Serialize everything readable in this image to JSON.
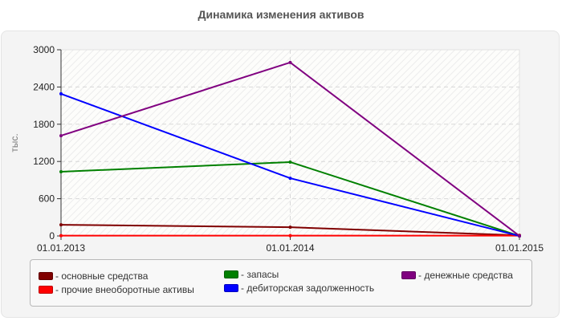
{
  "title": "Динамика изменения активов",
  "y_axis_label": "тыс.",
  "y_ticks": [
    "0",
    "600",
    "1200",
    "1800",
    "2400",
    "3000"
  ],
  "x_ticks": [
    "01.01.2013",
    "01.01.2014",
    "01.01.2015"
  ],
  "legend": [
    {
      "label": "- основные средства",
      "color": "#800000"
    },
    {
      "label": "- прочие внеоборотные активы",
      "color": "#ff0000"
    },
    {
      "label": "- запасы",
      "color": "#008000"
    },
    {
      "label": "- дебиторская задолженность",
      "color": "#0000ff"
    },
    {
      "label": "- денежные средства",
      "color": "#800080"
    }
  ],
  "chart_data": {
    "type": "line",
    "title": "Динамика изменения активов",
    "xlabel": "",
    "ylabel": "тыс.",
    "ylim": [
      0,
      3000
    ],
    "yticks": [
      0,
      600,
      1200,
      1800,
      2400,
      3000
    ],
    "grid": true,
    "legend_position": "bottom",
    "x": [
      "01.01.2013",
      "01.01.2014",
      "01.01.2015"
    ],
    "series": [
      {
        "name": "основные средства",
        "color": "#800000",
        "values": [
          180,
          140,
          10
        ]
      },
      {
        "name": "прочие внеоборотные активы",
        "color": "#ff0000",
        "values": [
          5,
          5,
          5
        ]
      },
      {
        "name": "запасы",
        "color": "#008000",
        "values": [
          1035,
          1190,
          0
        ]
      },
      {
        "name": "дебиторская задолженность",
        "color": "#0000ff",
        "values": [
          2290,
          930,
          0
        ]
      },
      {
        "name": "денежные средства",
        "color": "#800080",
        "values": [
          1615,
          2795,
          0
        ]
      }
    ]
  }
}
